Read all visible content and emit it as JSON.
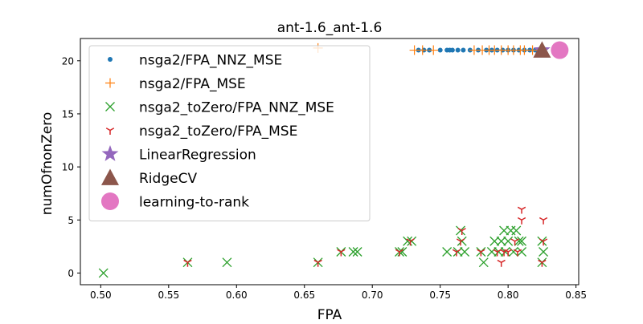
{
  "chart_data": {
    "type": "scatter",
    "title": "ant-1.6_ant-1.6",
    "xlabel": "FPA",
    "ylabel": "numOfnonZero",
    "xlim": [
      0.485,
      0.852
    ],
    "ylim": [
      -1.1,
      22.1
    ],
    "x_ticks": [
      "0.50",
      "0.55",
      "0.60",
      "0.65",
      "0.70",
      "0.75",
      "0.80",
      "0.85"
    ],
    "x_tick_values": [
      0.5,
      0.55,
      0.6,
      0.65,
      0.7,
      0.75,
      0.8,
      0.85
    ],
    "y_ticks": [
      "0",
      "5",
      "10",
      "15",
      "20"
    ],
    "y_tick_values": [
      0,
      5,
      10,
      15,
      20
    ],
    "grid": false,
    "legend_position": "upper-left",
    "series": [
      {
        "name": "nsga2/FPA_NNZ_MSE",
        "marker": "dot",
        "color": "#1f77b4",
        "x": [
          0.734,
          0.738,
          0.742,
          0.75,
          0.755,
          0.757,
          0.759,
          0.763,
          0.767,
          0.772,
          0.778,
          0.784,
          0.788,
          0.792,
          0.796,
          0.8,
          0.804,
          0.808,
          0.812,
          0.816,
          0.82
        ],
        "y": [
          21,
          21,
          21,
          21,
          21,
          21,
          21,
          21,
          21,
          21,
          21,
          21,
          21,
          21,
          21,
          21,
          21,
          21,
          21,
          21,
          21
        ]
      },
      {
        "name": "nsga2/FPA_MSE",
        "marker": "plus",
        "color": "#ff7f0e",
        "x": [
          0.66,
          0.731,
          0.737,
          0.745,
          0.775,
          0.781,
          0.786,
          0.79,
          0.795,
          0.8,
          0.804,
          0.809,
          0.812,
          0.818
        ],
        "y": [
          21.2,
          21,
          21,
          21,
          21,
          21,
          21,
          21,
          21,
          21,
          21,
          21,
          21,
          21
        ]
      },
      {
        "name": "nsga2_toZero/FPA_NNZ_MSE",
        "marker": "x",
        "color": "#2ca02c",
        "x": [
          0.502,
          0.564,
          0.593,
          0.66,
          0.677,
          0.686,
          0.689,
          0.72,
          0.722,
          0.726,
          0.729,
          0.755,
          0.763,
          0.765,
          0.766,
          0.768,
          0.78,
          0.782,
          0.788,
          0.79,
          0.793,
          0.795,
          0.797,
          0.798,
          0.8,
          0.802,
          0.804,
          0.806,
          0.808,
          0.81,
          0.81,
          0.825,
          0.825,
          0.826
        ],
        "y": [
          0,
          1,
          1,
          1,
          2,
          2,
          2,
          2,
          2,
          3,
          3,
          2,
          2,
          4,
          3,
          2,
          2,
          1,
          2,
          3,
          2,
          3,
          4,
          2,
          3,
          4,
          2,
          4,
          3,
          2,
          3,
          1,
          3,
          2
        ]
      },
      {
        "name": "nsga2_toZero/FPA_MSE",
        "marker": "tri_down",
        "color": "#d62728",
        "x": [
          0.564,
          0.66,
          0.677,
          0.72,
          0.728,
          0.762,
          0.765,
          0.766,
          0.78,
          0.792,
          0.795,
          0.797,
          0.8,
          0.805,
          0.807,
          0.81,
          0.81,
          0.825,
          0.826,
          0.826
        ],
        "y": [
          1,
          1,
          2,
          2,
          3,
          2,
          3,
          4,
          2,
          2,
          1,
          2,
          2,
          3,
          2,
          6,
          5,
          1,
          5,
          3
        ]
      },
      {
        "name": "LinearRegression",
        "marker": "star",
        "color": "#9467bd",
        "x": [
          0.825
        ],
        "y": [
          21
        ]
      },
      {
        "name": "RidgeCV",
        "marker": "triangle",
        "color": "#8c564b",
        "x": [
          0.825
        ],
        "y": [
          21
        ]
      },
      {
        "name": "learning-to-rank",
        "marker": "circle",
        "color": "#e377c2",
        "x": [
          0.838
        ],
        "y": [
          21
        ]
      }
    ]
  }
}
